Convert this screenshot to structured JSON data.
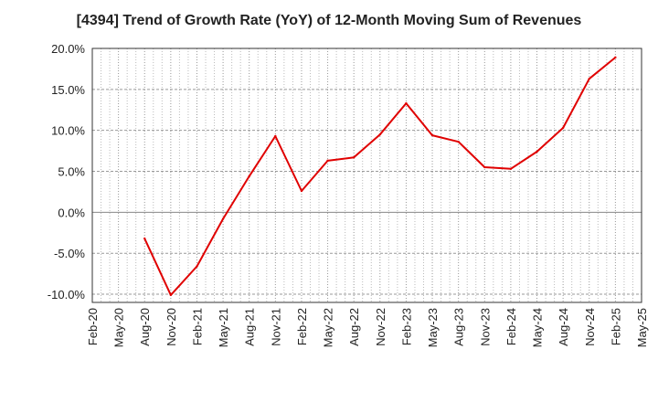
{
  "chart_data": {
    "type": "line",
    "title": "[4394]  Trend of Growth Rate (YoY) of 12-Month Moving Sum of Revenues",
    "xlabel": "",
    "ylabel": "",
    "x_ticks": [
      "Feb-20",
      "May-20",
      "Aug-20",
      "Nov-20",
      "Feb-21",
      "May-21",
      "Aug-21",
      "Nov-21",
      "Feb-22",
      "May-22",
      "Aug-22",
      "Nov-22",
      "Feb-23",
      "May-23",
      "Aug-23",
      "Nov-23",
      "Feb-24",
      "May-24",
      "Aug-24",
      "Nov-24",
      "Feb-25",
      "May-25"
    ],
    "y_ticks": [
      "20.0%",
      "15.0%",
      "10.0%",
      "5.0%",
      "0.0%",
      "-5.0%",
      "-10.0%"
    ],
    "y_tick_values": [
      20,
      15,
      10,
      5,
      0,
      -5,
      -10
    ],
    "ylim": [
      -11,
      20
    ],
    "grid": true,
    "series": [
      {
        "color": "#e00000",
        "points": [
          {
            "x": "Aug-20",
            "y": -3.2
          },
          {
            "x": "Nov-20",
            "y": -10.1
          },
          {
            "x": "Feb-21",
            "y": -6.6
          },
          {
            "x": "May-21",
            "y": -0.8
          },
          {
            "x": "Aug-21",
            "y": 4.4
          },
          {
            "x": "Nov-21",
            "y": 9.3
          },
          {
            "x": "Feb-22",
            "y": 2.6
          },
          {
            "x": "May-22",
            "y": 6.3
          },
          {
            "x": "Aug-22",
            "y": 6.7
          },
          {
            "x": "Nov-22",
            "y": 9.5
          },
          {
            "x": "Feb-23",
            "y": 13.3
          },
          {
            "x": "May-23",
            "y": 9.4
          },
          {
            "x": "Aug-23",
            "y": 8.6
          },
          {
            "x": "Nov-23",
            "y": 5.5
          },
          {
            "x": "Feb-24",
            "y": 5.3
          },
          {
            "x": "May-24",
            "y": 7.4
          },
          {
            "x": "Aug-24",
            "y": 10.3
          },
          {
            "x": "Nov-24",
            "y": 16.3
          },
          {
            "x": "Feb-25",
            "y": 18.9
          }
        ]
      }
    ]
  }
}
